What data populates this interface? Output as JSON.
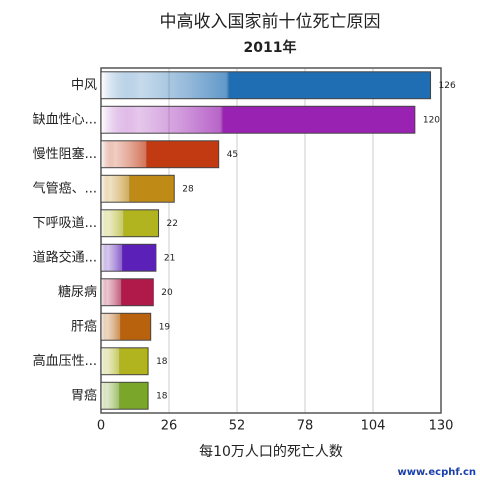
{
  "chart_data": {
    "type": "barh",
    "title": "中高收入国家前十位死亡原因",
    "subtitle": "2011年",
    "xlabel": "每10万人口的死亡人数",
    "categories": [
      "中风",
      "缺血性心...",
      "慢性阻塞...",
      "气管癌、...",
      "下呼吸道...",
      "道路交通...",
      "糖尿病",
      "肝癌",
      "高血压性...",
      "胃癌"
    ],
    "values": [
      126,
      120,
      45,
      28,
      22,
      21,
      20,
      19,
      18,
      18
    ],
    "colors": [
      "#1f6db2",
      "#9a22b2",
      "#c23a12",
      "#bf8a16",
      "#b1b41e",
      "#5a20b8",
      "#b01a4a",
      "#b8620e",
      "#b1b41e",
      "#7aa62a"
    ],
    "xlim": [
      0,
      130
    ],
    "xticks": [
      0,
      26,
      52,
      78,
      104,
      130
    ],
    "grid": true,
    "watermark": "www.ecphf.cn"
  }
}
